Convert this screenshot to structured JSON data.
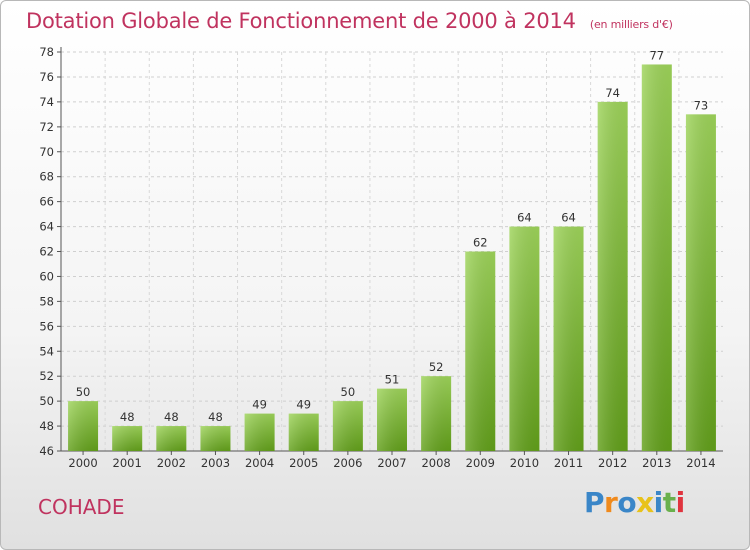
{
  "chart_data": {
    "type": "bar",
    "title": "Dotation Globale de Fonctionnement de 2000 à 2014",
    "subtitle": "(en milliers d'€)",
    "categories": [
      "2000",
      "2001",
      "2002",
      "2003",
      "2004",
      "2005",
      "2006",
      "2007",
      "2008",
      "2009",
      "2010",
      "2011",
      "2012",
      "2013",
      "2014"
    ],
    "values": [
      50,
      48,
      48,
      48,
      49,
      49,
      50,
      51,
      52,
      62,
      64,
      64,
      74,
      77,
      73
    ],
    "ylim": [
      46,
      78
    ],
    "yticks": [
      46,
      48,
      50,
      52,
      54,
      56,
      58,
      60,
      62,
      64,
      66,
      68,
      70,
      72,
      74,
      76,
      78
    ],
    "xlabel": "",
    "ylabel": "",
    "grid": true
  },
  "footer": {
    "place_name": "COHADE",
    "logo_letters": [
      "P",
      "r",
      "o",
      "x",
      "i",
      "t",
      "i"
    ],
    "logo_colors": [
      "#3a86c8",
      "#f08a1c",
      "#3a86c8",
      "#e8c21a",
      "#3a86c8",
      "#6ab04c",
      "#e0343e"
    ]
  }
}
